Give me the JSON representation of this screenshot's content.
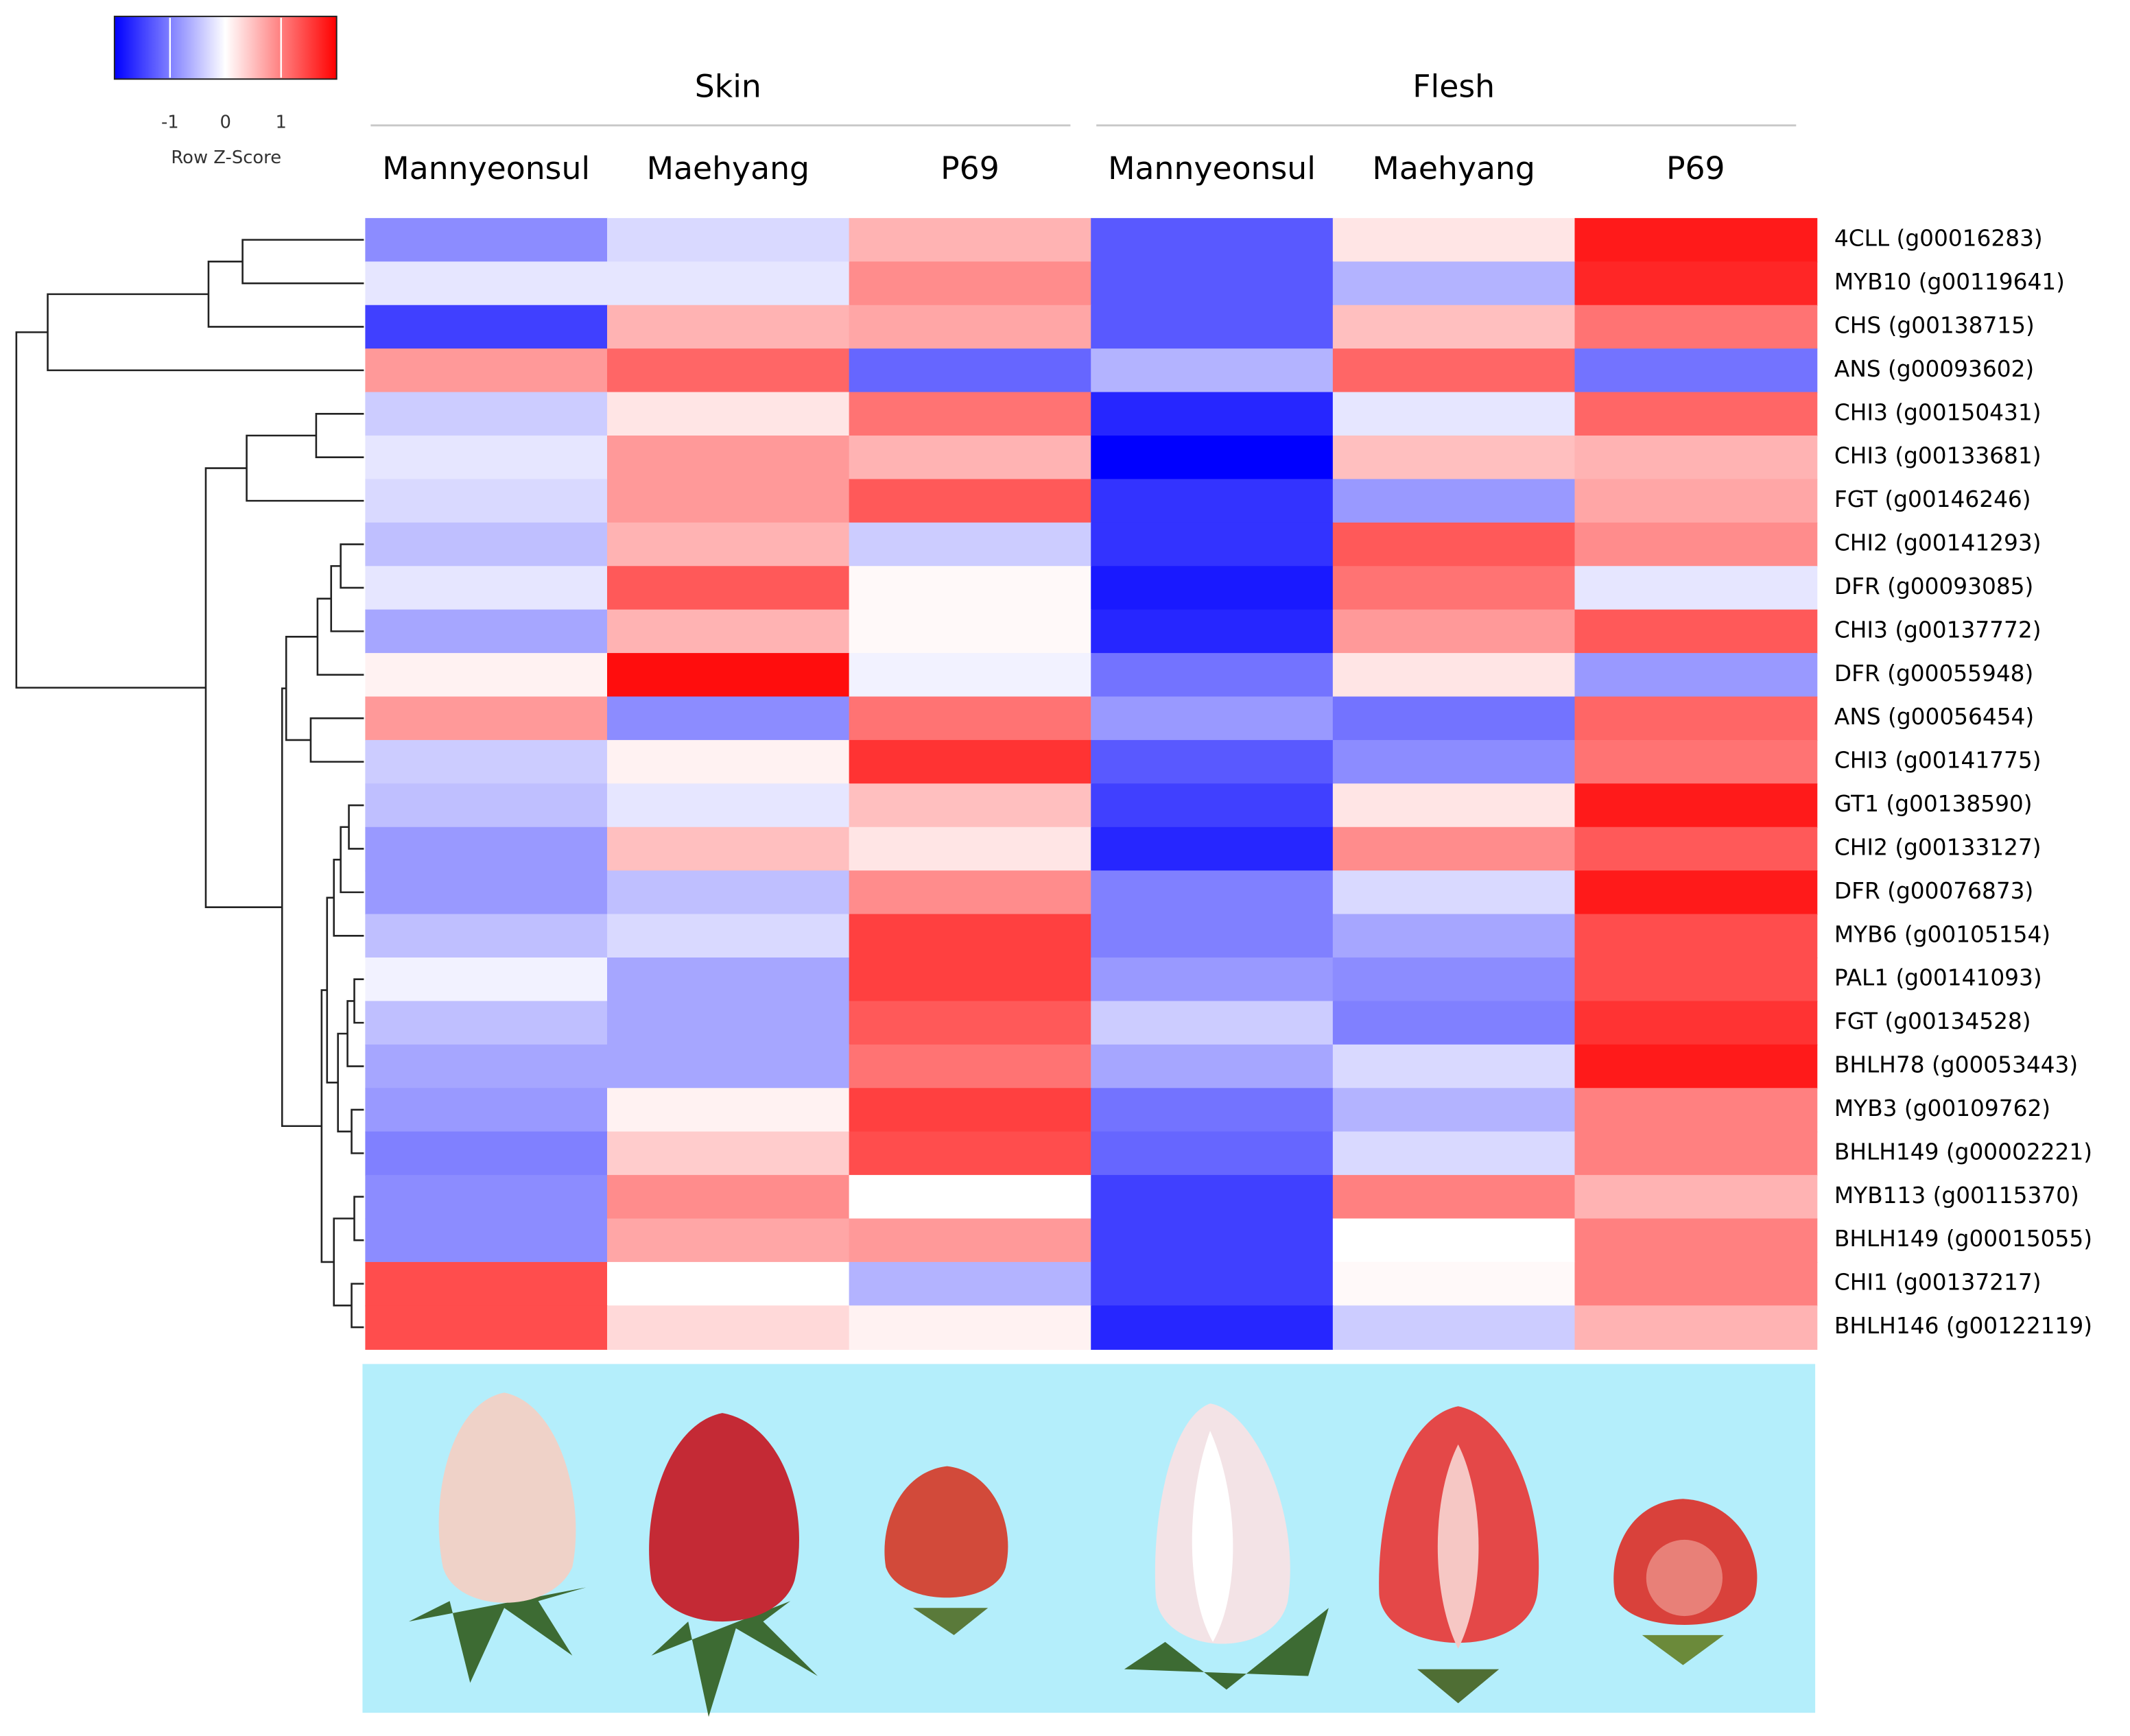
{
  "chart_data": {
    "type": "heatmap",
    "colorbar_label": "Row Z-Score",
    "zlim": [
      -2,
      2
    ],
    "zticks": [
      -1,
      0,
      1
    ],
    "colors": [
      "#0000ff",
      "#ffffff",
      "#ff0000"
    ],
    "groups": [
      "Skin",
      "Flesh"
    ],
    "columns": [
      "Mannyeonsul",
      "Maehyang",
      "P69",
      "Mannyeonsul",
      "Maehyang",
      "P69"
    ],
    "rows": [
      "4CLL (g00016283)",
      "MYB10 (g00119641)",
      "CHS (g00138715)",
      "ANS (g00093602)",
      "CHI3 (g00150431)",
      "CHI3 (g00133681)",
      "FGT (g00146246)",
      "CHI2 (g00141293)",
      "DFR (g00093085)",
      "CHI3 (g00137772)",
      "DFR (g00055948)",
      "ANS (g00056454)",
      "CHI3 (g00141775)",
      "GT1 (g00138590)",
      "CHI2 (g00133127)",
      "DFR (g00076873)",
      "MYB6 (g00105154)",
      "PAL1 (g00141093)",
      "FGT (g00134528)",
      "BHLH78 (g00053443)",
      "MYB3 (g00109762)",
      "BHLH149 (g00002221)",
      "MYB113 (g00115370)",
      "BHLH149 (g00015055)",
      "CHI1 (g00137217)",
      "BHLH146 (g00122119)"
    ],
    "values": [
      [
        -0.9,
        -0.3,
        0.6,
        -1.3,
        0.2,
        1.8
      ],
      [
        -0.2,
        -0.2,
        0.9,
        -1.3,
        -0.6,
        1.7
      ],
      [
        -1.5,
        0.6,
        0.7,
        -1.3,
        0.5,
        1.1
      ],
      [
        0.8,
        1.2,
        -1.2,
        -0.6,
        1.2,
        -1.1
      ],
      [
        -0.4,
        0.2,
        1.1,
        -1.7,
        -0.2,
        1.2
      ],
      [
        -0.2,
        0.8,
        0.6,
        -2.0,
        0.5,
        0.6
      ],
      [
        -0.3,
        0.8,
        1.3,
        -1.6,
        -0.8,
        0.7
      ],
      [
        -0.5,
        0.6,
        -0.4,
        -1.6,
        1.3,
        0.9
      ],
      [
        -0.2,
        1.3,
        0.05,
        -1.8,
        1.1,
        -0.2
      ],
      [
        -0.7,
        0.6,
        0.05,
        -1.7,
        0.8,
        1.3
      ],
      [
        0.1,
        1.9,
        -0.1,
        -1.1,
        0.2,
        -0.8
      ],
      [
        0.8,
        -0.9,
        1.1,
        -0.8,
        -1.1,
        1.2
      ],
      [
        -0.4,
        0.1,
        1.6,
        -1.3,
        -0.9,
        1.1
      ],
      [
        -0.5,
        -0.2,
        0.5,
        -1.5,
        0.2,
        1.8
      ],
      [
        -0.8,
        0.5,
        0.2,
        -1.7,
        0.9,
        1.3
      ],
      [
        -0.8,
        -0.5,
        0.9,
        -1.0,
        -0.3,
        1.8
      ],
      [
        -0.5,
        -0.3,
        1.5,
        -1.0,
        -0.7,
        1.4
      ],
      [
        -0.1,
        -0.7,
        1.5,
        -0.8,
        -0.9,
        1.4
      ],
      [
        -0.5,
        -0.7,
        1.3,
        -0.4,
        -1.0,
        1.6
      ],
      [
        -0.7,
        -0.7,
        1.1,
        -0.7,
        -0.3,
        1.8
      ],
      [
        -0.8,
        0.1,
        1.5,
        -1.1,
        -0.6,
        1.0
      ],
      [
        -1.0,
        0.4,
        1.4,
        -1.2,
        -0.3,
        1.0
      ],
      [
        -0.9,
        0.9,
        0.0,
        -1.5,
        1.0,
        0.6
      ],
      [
        -0.9,
        0.7,
        0.8,
        -1.5,
        0.0,
        1.0
      ],
      [
        1.4,
        0.0,
        -0.6,
        -1.5,
        0.05,
        1.0
      ],
      [
        1.4,
        0.3,
        0.1,
        -1.7,
        -0.4,
        0.6
      ]
    ]
  }
}
